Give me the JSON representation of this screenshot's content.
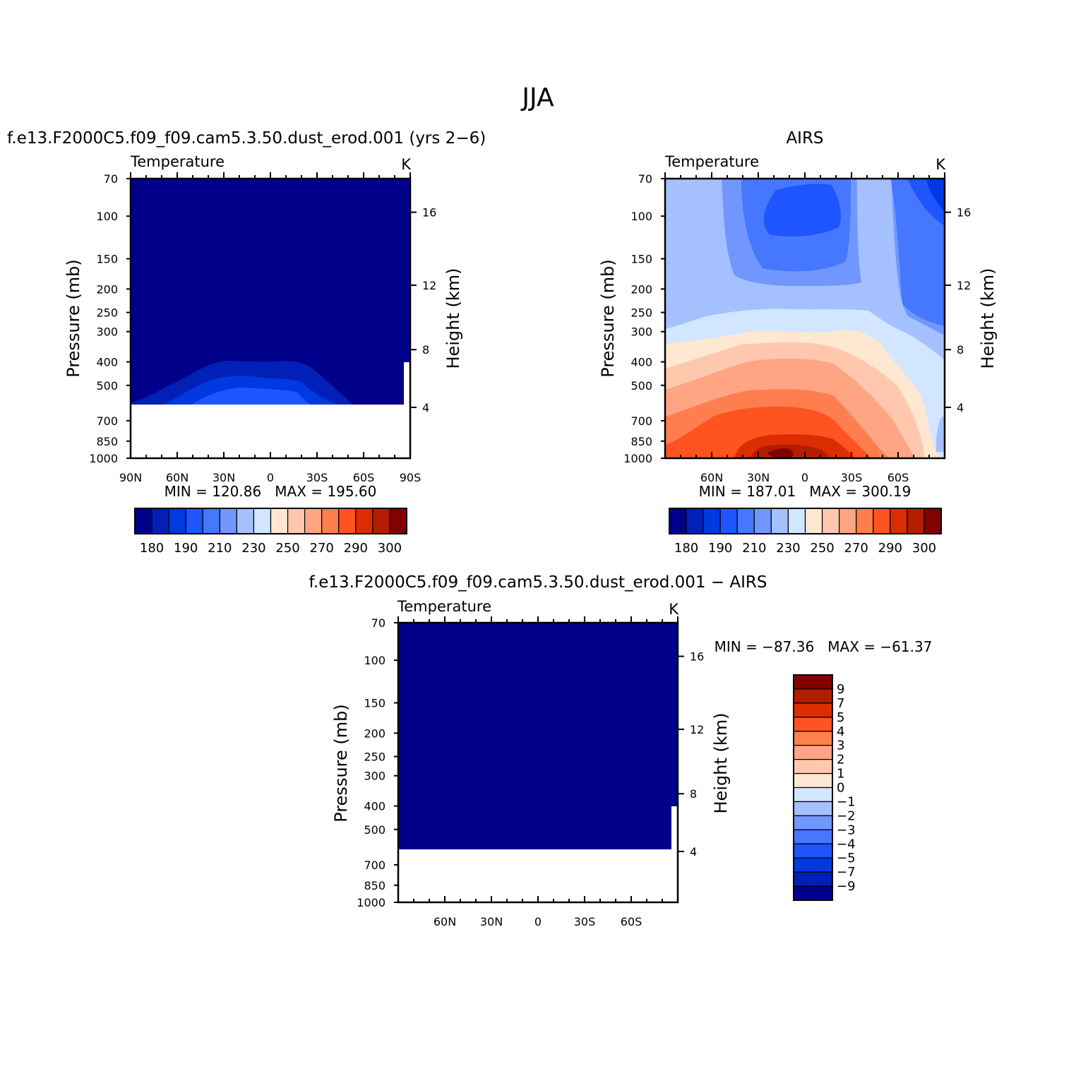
{
  "page": {
    "main_title": "JJA"
  },
  "chart_data": [
    {
      "type": "heatmap",
      "panel": "model",
      "title": "f.e13.F2000C5.f09_f09.cam5.3.50.dust_erod.001 (yrs 2−6)",
      "left_string": "Temperature",
      "right_string": "K",
      "ylabel": "Pressure (mb)",
      "ylabel_right": "Height (km)",
      "pressure_ticks": [
        "70",
        "100",
        "150",
        "200",
        "250",
        "300",
        "400",
        "500",
        "700",
        "850",
        "1000"
      ],
      "height_ticks": [
        "16",
        "12",
        "8",
        "4"
      ],
      "x_ticks": [
        "90N",
        "60N",
        "30N",
        "0",
        "30S",
        "60S",
        "90S"
      ],
      "min_max": "MIN = 120.86   MAX = 195.60",
      "value_min": 120.86,
      "value_max": 195.6,
      "colorbar_labels": [
        "180",
        "190",
        "210",
        "230",
        "250",
        "270",
        "290",
        "300"
      ]
    },
    {
      "type": "heatmap",
      "panel": "obs",
      "title": "AIRS",
      "left_string": "Temperature",
      "right_string": "K",
      "ylabel": "Pressure (mb)",
      "ylabel_right": "Height (km)",
      "pressure_ticks": [
        "70",
        "100",
        "150",
        "200",
        "250",
        "300",
        "400",
        "500",
        "700",
        "850",
        "1000"
      ],
      "height_ticks": [
        "16",
        "12",
        "8",
        "4"
      ],
      "x_ticks": [
        "60N",
        "30N",
        "0",
        "30S",
        "60S"
      ],
      "min_max": "MIN = 187.01   MAX = 300.19",
      "value_min": 187.01,
      "value_max": 300.19,
      "colorbar_labels": [
        "180",
        "190",
        "210",
        "230",
        "250",
        "270",
        "290",
        "300"
      ]
    },
    {
      "type": "heatmap",
      "panel": "difference",
      "title": "f.e13.F2000C5.f09_f09.cam5.3.50.dust_erod.001 − AIRS",
      "left_string": "Temperature",
      "right_string": "K",
      "ylabel": "Pressure (mb)",
      "ylabel_right": "Height (km)",
      "pressure_ticks": [
        "70",
        "100",
        "150",
        "200",
        "250",
        "300",
        "400",
        "500",
        "700",
        "850",
        "1000"
      ],
      "height_ticks": [
        "16",
        "12",
        "8",
        "4"
      ],
      "x_ticks": [
        "60N",
        "30N",
        "0",
        "30S",
        "60S"
      ],
      "min_max": "MIN = −87.36   MAX = −61.37",
      "value_min": -87.36,
      "value_max": -61.37,
      "colorbar_labels": [
        "9",
        "7",
        "5",
        "4",
        "3",
        "2",
        "1",
        "0",
        "−1",
        "−2",
        "−3",
        "−4",
        "−5",
        "−7",
        "−9"
      ]
    }
  ],
  "colors": {
    "palette": [
      "#00008a",
      "#0020b8",
      "#0039e0",
      "#1f55ff",
      "#4577ff",
      "#7197ff",
      "#a5c0ff",
      "#d2e6ff",
      "#ffe7d2",
      "#ffc8ae",
      "#ffa584",
      "#ff7e50",
      "#ff5320",
      "#dc2d00",
      "#b41c00",
      "#820000"
    ],
    "diff_palette_top_to_bottom": [
      "#820000",
      "#b41c00",
      "#dc2d00",
      "#ff5320",
      "#ff7e50",
      "#ffa584",
      "#ffc8ae",
      "#ffe7d2",
      "#d2e6ff",
      "#a5c0ff",
      "#7197ff",
      "#4577ff",
      "#1f55ff",
      "#0039e0",
      "#0020b8",
      "#00008a"
    ]
  }
}
